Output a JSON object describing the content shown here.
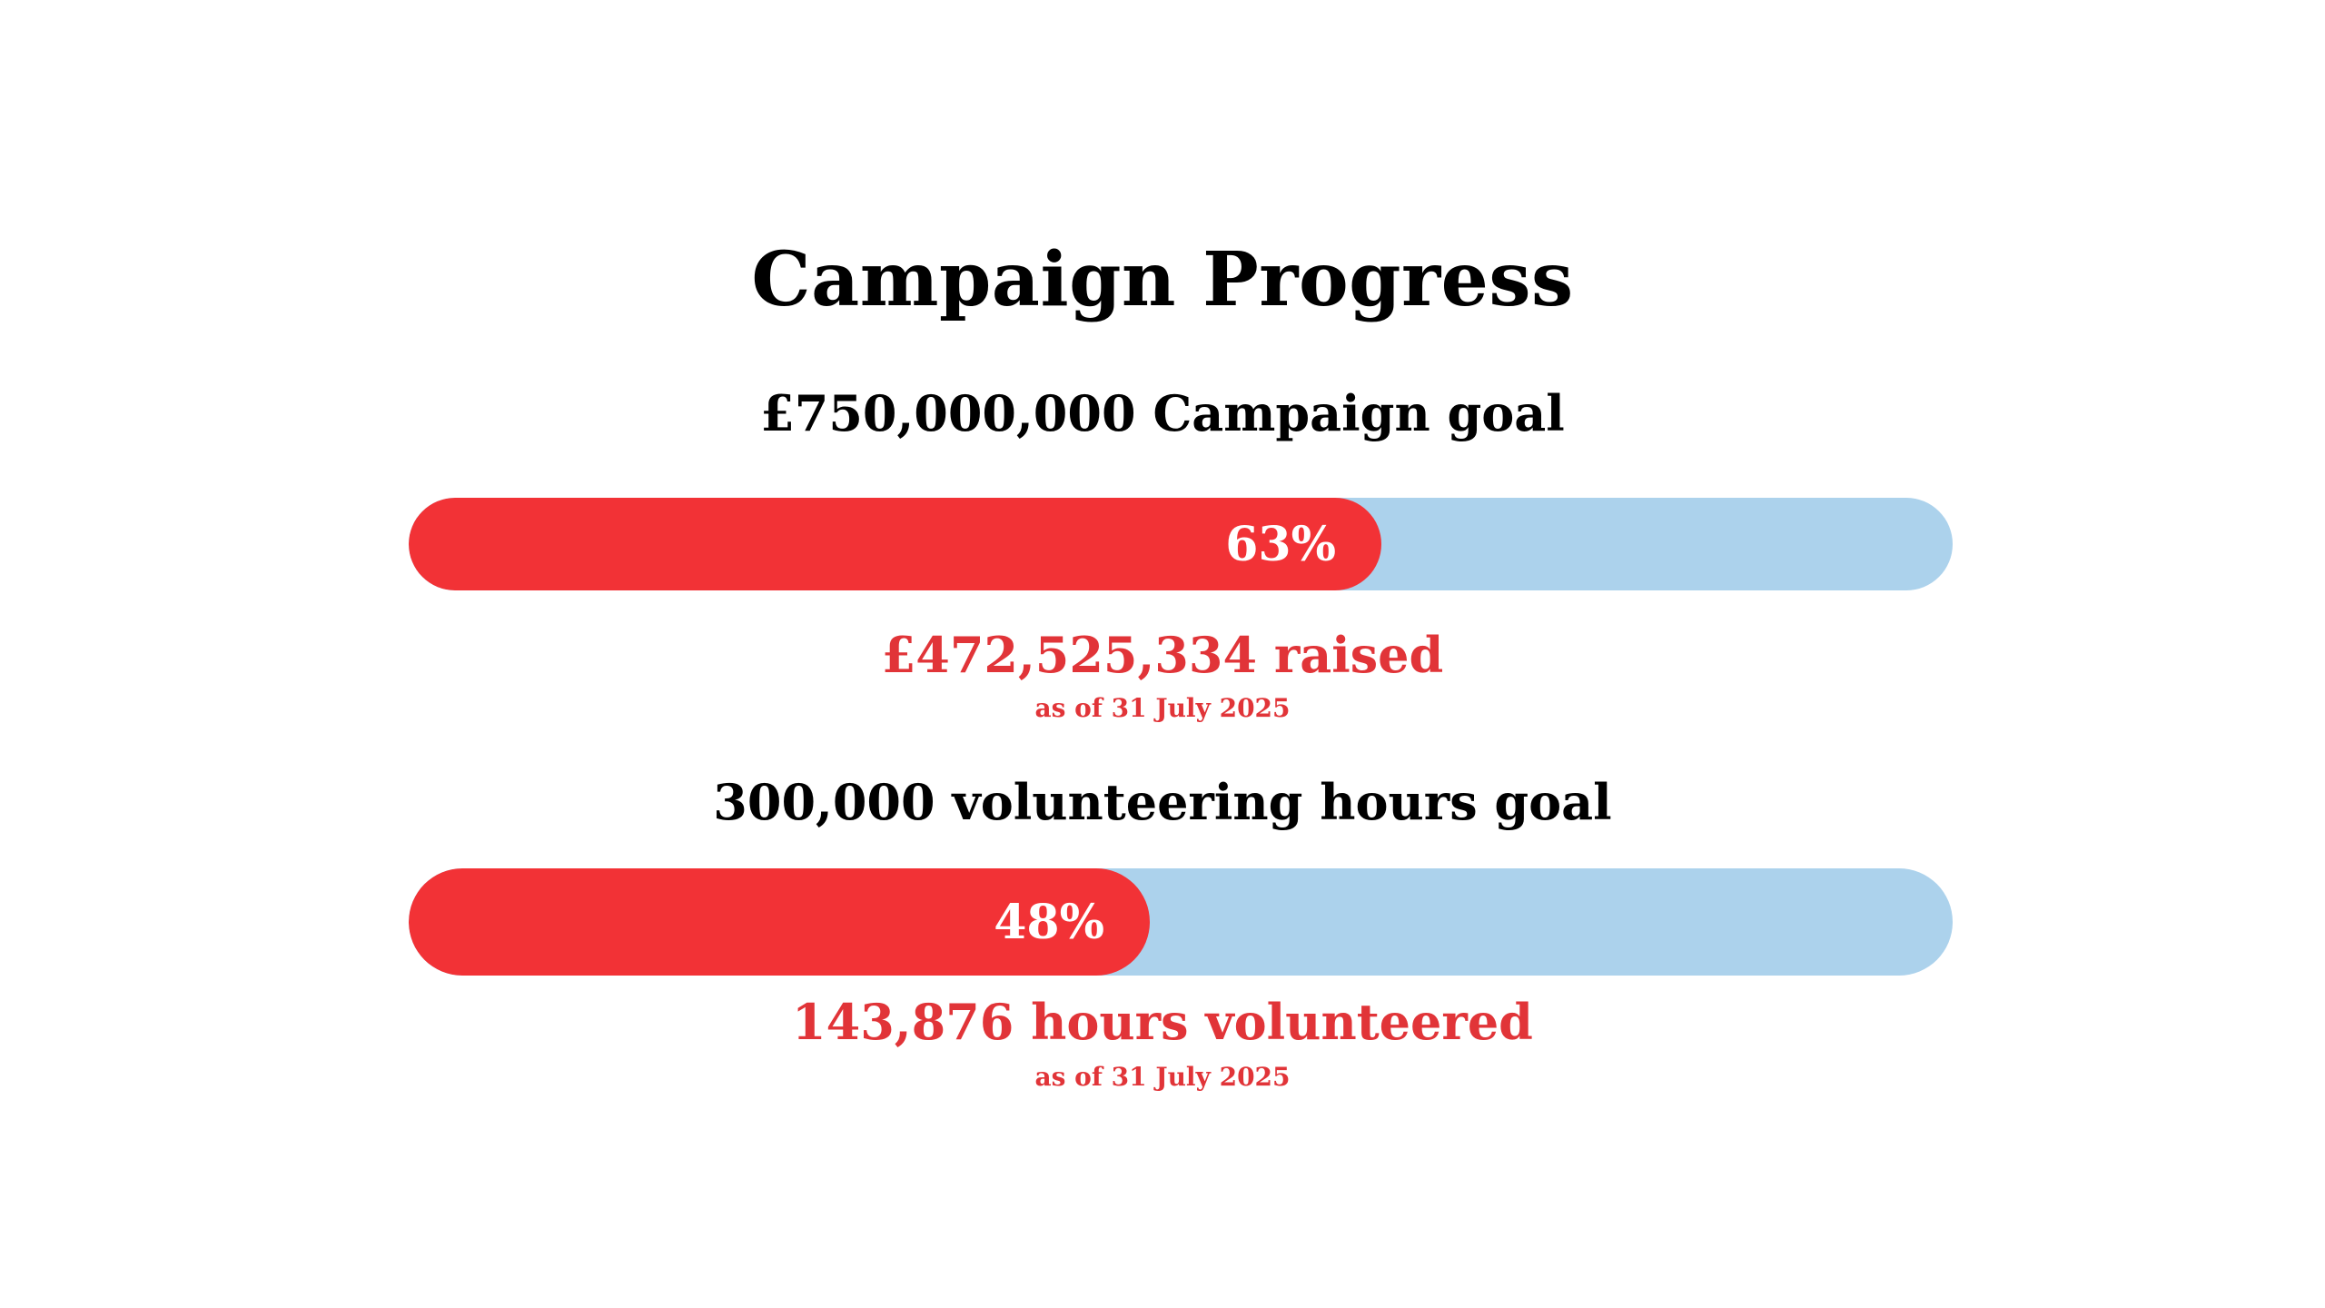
{
  "title": "Campaign Progress",
  "colors": {
    "fill": "#f23236",
    "track": "#acd2ec",
    "accent_text": "#e13438",
    "heading_text": "#000000",
    "percent_text": "#ffffff"
  },
  "goals": [
    {
      "heading": "£750,000,000 Campaign goal",
      "progress_fraction": 0.63,
      "percent_label": "63%",
      "result": "£472,525,334 raised",
      "as_of": "as of 31 July 2025"
    },
    {
      "heading": "300,000 volunteering hours goal",
      "progress_fraction": 0.48,
      "percent_label": "48%",
      "result": "143,876 hours volunteered",
      "as_of": "as of 31 July 2025"
    }
  ]
}
